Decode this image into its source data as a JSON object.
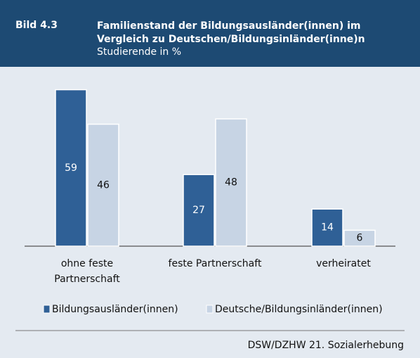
{
  "chart_data": {
    "type": "bar",
    "label": "Bild 4.3",
    "title": "Familienstand der Bildungsausländer(innen) im Vergleich zu Deutschen/Bildungsinländer(inne)n",
    "subtitle": "Studierende in %",
    "categories": [
      "ohne feste Partnerschaft",
      "feste Partnerschaft",
      "verheiratet"
    ],
    "series": [
      {
        "name": "Bildungsausländer(innen)",
        "color": "#2f6096",
        "values": [
          59,
          27,
          14
        ]
      },
      {
        "name": "Deutsche/Bildungsinländer(innen)",
        "color": "#c7d4e4",
        "values": [
          46,
          48,
          6
        ]
      }
    ],
    "source": "DSW/DZHW 21. Sozialerhebung"
  }
}
